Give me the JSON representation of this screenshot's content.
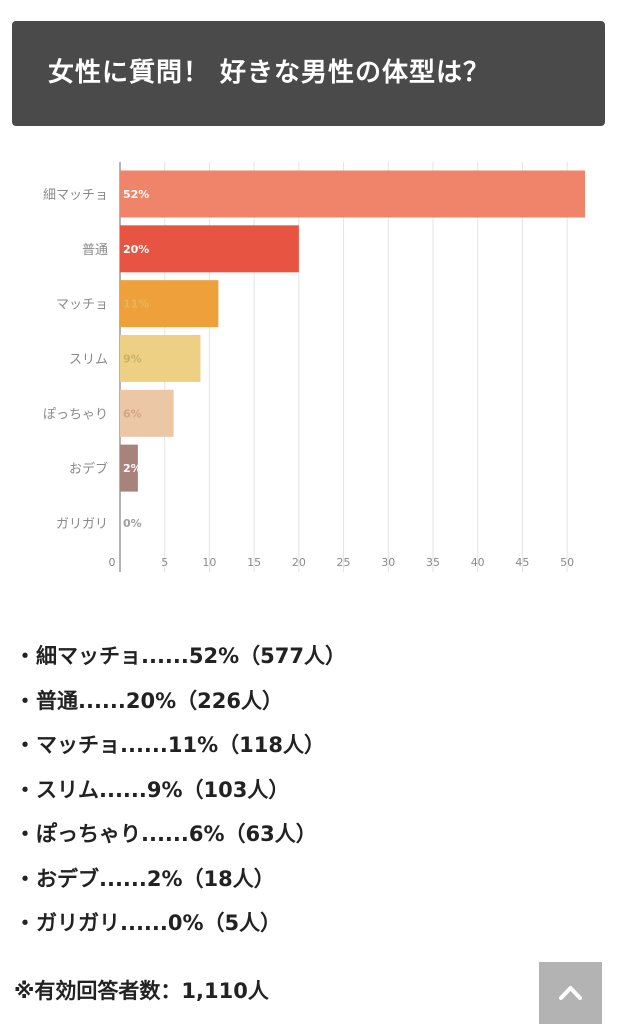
{
  "header": {
    "title": "女性に質問！ 好きな男性の体型は？"
  },
  "chart_data": {
    "type": "bar",
    "orientation": "horizontal",
    "title": "",
    "xlabel": "",
    "ylabel": "",
    "categories": [
      "細マッチョ",
      "普通",
      "マッチョ",
      "スリム",
      "ぽっちゃり",
      "おデブ",
      "ガリガリ"
    ],
    "values": [
      52,
      20,
      11,
      9,
      6,
      2,
      0
    ],
    "data_labels": [
      "52%",
      "20%",
      "11%",
      "9%",
      "6%",
      "2%",
      "0%"
    ],
    "colors": [
      "#ef846a",
      "#e85442",
      "#eea03a",
      "#edd084",
      "#ebc7a6",
      "#a8837b",
      "#cccccc"
    ],
    "label_colors": [
      "#ffffff",
      "#ffffff",
      "#e8b55a",
      "#c9b06a",
      "#d3a688",
      "#ffffff",
      "#a0a0a0"
    ],
    "xlim": [
      0,
      52
    ],
    "xticks": [
      0,
      5,
      10,
      15,
      20,
      25,
      30,
      35,
      40,
      45,
      50
    ],
    "grid": true
  },
  "results": {
    "bullet": "・",
    "items": [
      "細マッチョ......52%（577人）",
      "普通......20%（226人）",
      "マッチョ......11%（118人）",
      "スリム......9%（103人）",
      "ぽっちゃり......6%（63人）",
      "おデブ......2%（18人）",
      "ガリガリ......0%（5人）"
    ]
  },
  "footer": {
    "total_note": "※有効回答者数：1,110人"
  },
  "back_to_top": {
    "icon": "chevron-up-icon",
    "color": "#b3b3b3"
  }
}
